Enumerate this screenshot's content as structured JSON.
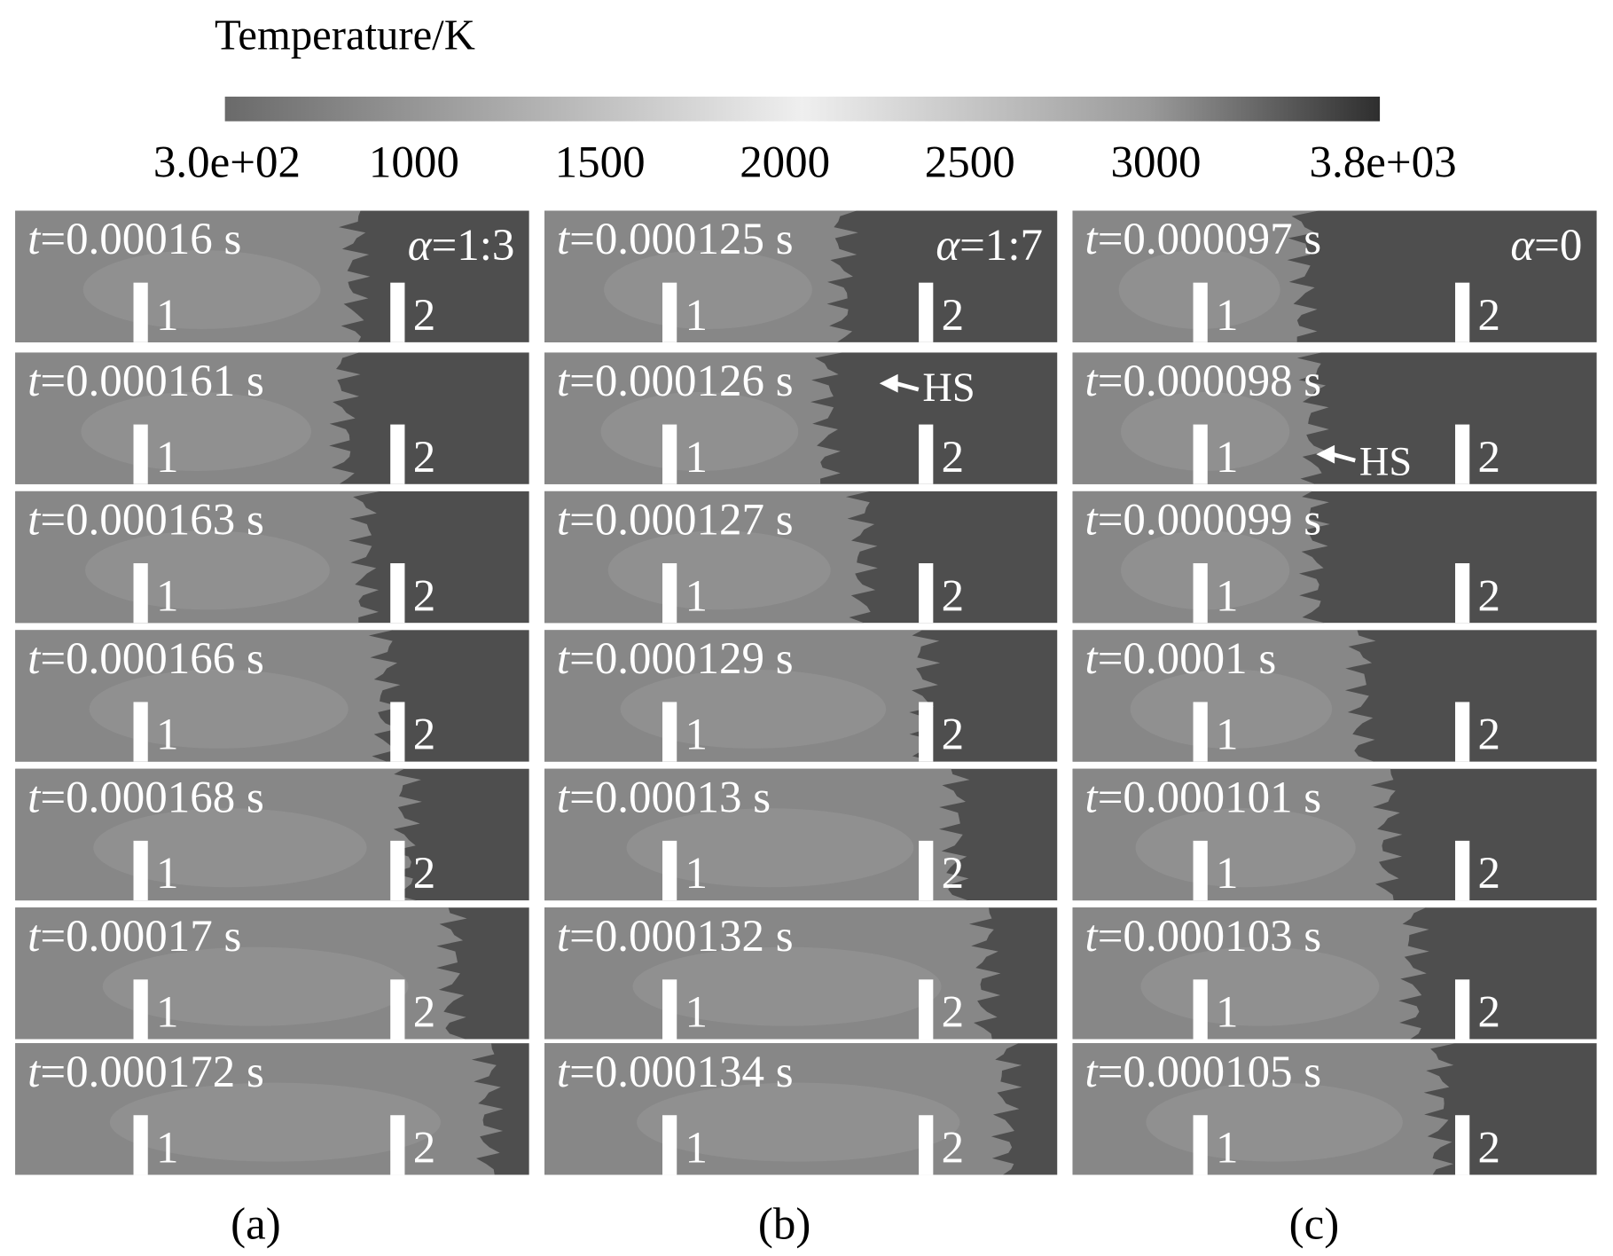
{
  "colorbar": {
    "title": "Temperature/K",
    "tick_labels": [
      "3.0e+02",
      "1000",
      "1500",
      "2000",
      "2500",
      "3000",
      "3.8e+03"
    ]
  },
  "time_symbol": "t",
  "alpha_symbol": "α",
  "probe_labels": [
    "1",
    "2"
  ],
  "columns": [
    {
      "label": "(a)",
      "alpha": "=1:3",
      "panels": [
        {
          "time": "=0.00016 s"
        },
        {
          "time": "=0.000161 s"
        },
        {
          "time": "=0.000163 s"
        },
        {
          "time": "=0.000166 s"
        },
        {
          "time": "=0.000168 s"
        },
        {
          "time": "=0.00017 s"
        },
        {
          "time": "=0.000172 s"
        }
      ]
    },
    {
      "label": "(b)",
      "alpha": "=1:7",
      "panels": [
        {
          "time": "=0.000125 s"
        },
        {
          "time": "=0.000126 s",
          "annotation": "HS"
        },
        {
          "time": "=0.000127 s"
        },
        {
          "time": "=0.000129 s"
        },
        {
          "time": "=0.00013 s"
        },
        {
          "time": "=0.000132 s"
        },
        {
          "time": "=0.000134 s"
        }
      ]
    },
    {
      "label": "(c)",
      "alpha": "=0",
      "panels": [
        {
          "time": "=0.000097 s"
        },
        {
          "time": "=0.000098 s",
          "annotation": "HS"
        },
        {
          "time": "=0.000099 s"
        },
        {
          "time": "=0.0001 s"
        },
        {
          "time": "=0.000101 s"
        },
        {
          "time": "=0.000103 s"
        },
        {
          "time": "=0.000105 s"
        }
      ]
    }
  ]
}
